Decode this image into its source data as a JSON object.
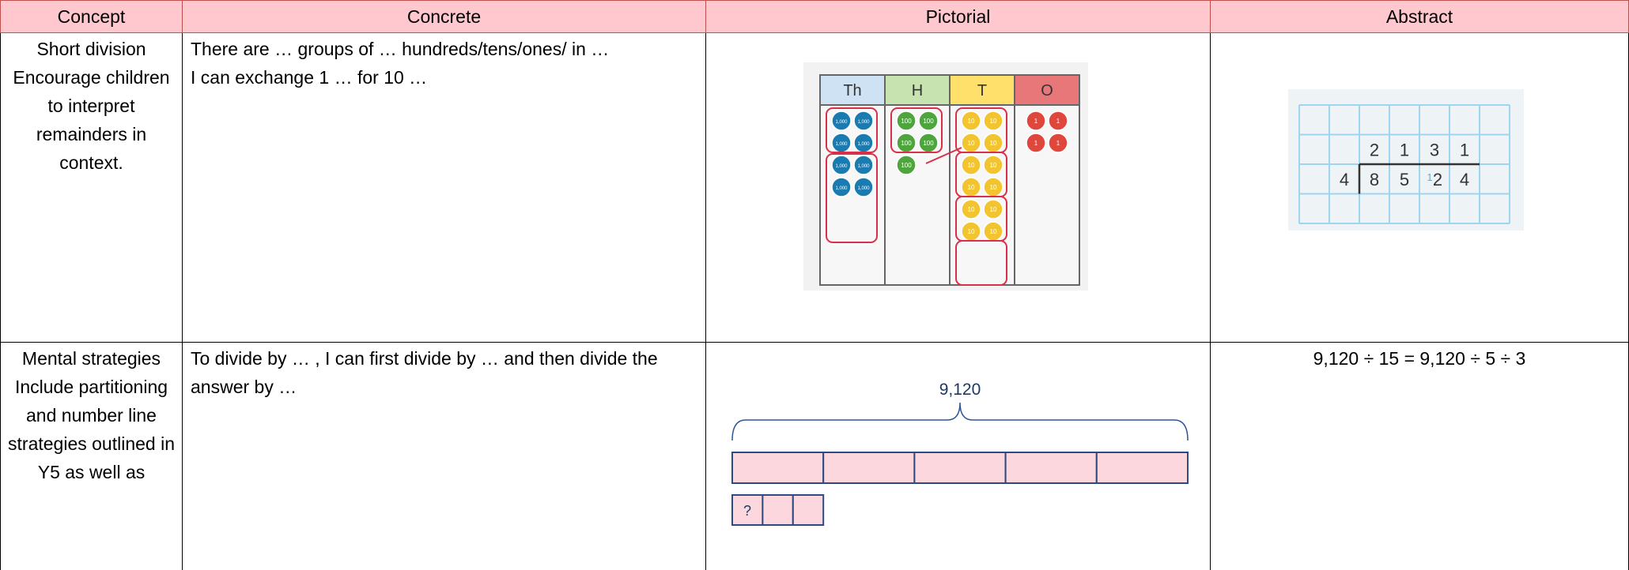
{
  "table": {
    "header": [
      "Concept",
      "Concrete",
      "Pictorial",
      "Abstract"
    ],
    "rows": [
      {
        "concept": [
          "Short division",
          "Encourage children to interpret remainders in context."
        ],
        "concrete": [
          "There are … groups of … hundreds/tens/ones/ in …",
          "I can exchange 1 … for 10 …"
        ],
        "pictorial": {
          "columns": [
            "Th",
            "H",
            "T",
            "O"
          ],
          "coins": [
            "1,000",
            "100",
            "10",
            "1"
          ]
        },
        "abstract": {
          "quotient": [
            "2",
            "1",
            "3",
            "1"
          ],
          "divisor": "4",
          "dividend": [
            "8",
            "5",
            "2",
            "4"
          ],
          "exchange": "1"
        }
      },
      {
        "concept": [
          "Mental strategies",
          "Include partitioning and number line strategies outlined in Y5 as well as"
        ],
        "concrete": [
          "To divide by … , I can first divide by … and then divide the answer by …"
        ],
        "pictorial": {
          "total": "9,120",
          "part": "?"
        },
        "abstract": [
          "9,120 ÷ 15 = 9,120 ÷ 5 ÷ 3"
        ]
      }
    ]
  }
}
